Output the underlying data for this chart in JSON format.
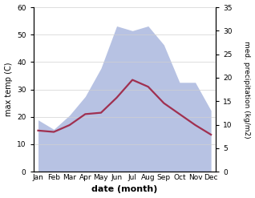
{
  "months": [
    "Jan",
    "Feb",
    "Mar",
    "Apr",
    "May",
    "Jun",
    "Jul",
    "Aug",
    "Sep",
    "Oct",
    "Nov",
    "Dec"
  ],
  "month_positions": [
    0,
    1,
    2,
    3,
    4,
    5,
    6,
    7,
    8,
    9,
    10,
    11
  ],
  "temp_line": [
    15.0,
    14.5,
    17.0,
    21.0,
    21.5,
    27.0,
    33.5,
    31.0,
    25.0,
    21.0,
    17.0,
    13.5
  ],
  "precip_area": [
    11,
    9,
    12,
    16,
    22,
    31,
    30,
    31,
    27,
    19,
    19,
    13
  ],
  "temp_ylim": [
    0,
    60
  ],
  "precip_ylim": [
    0,
    35
  ],
  "temp_yticks": [
    0,
    10,
    20,
    30,
    40,
    50,
    60
  ],
  "precip_yticks": [
    0,
    5,
    10,
    15,
    20,
    25,
    30,
    35
  ],
  "xlabel": "date (month)",
  "ylabel_left": "max temp (C)",
  "ylabel_right": "med. precipitation (kg/m2)",
  "line_color": "#a03050",
  "fill_color": "#b0bce0",
  "fill_alpha": 0.9,
  "line_width": 1.6,
  "bg_color": "#ffffff",
  "grid_color": "#d0d0d0"
}
